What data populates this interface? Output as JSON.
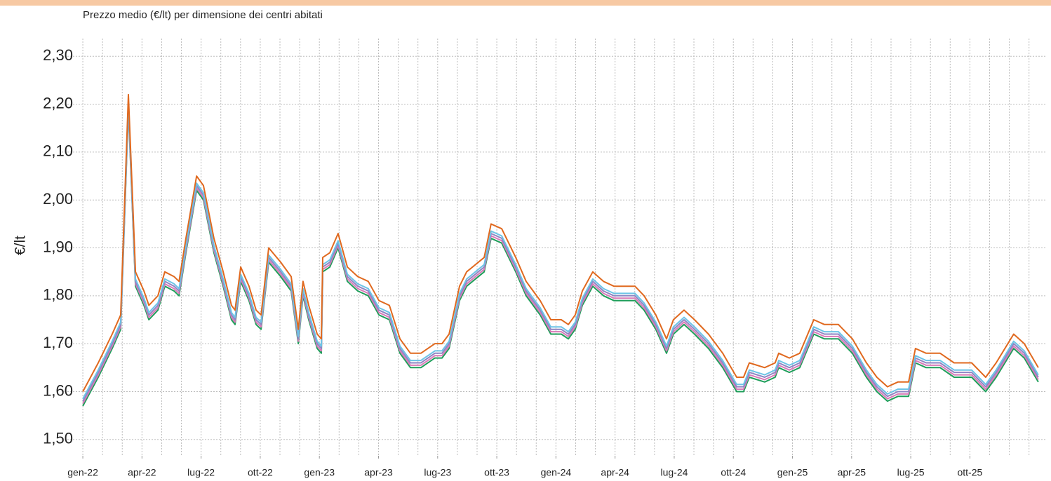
{
  "chart_data": {
    "type": "line",
    "title": "Prezzo medio (€/lt) per dimensione dei centri abitati",
    "ylabel": "€/lt",
    "grid": true,
    "xlim": [
      -1.07,
      48.83
    ],
    "ylim": [
      1.466,
      2.337
    ],
    "yticks": [
      {
        "value": 1.5,
        "label": "1,50"
      },
      {
        "value": 1.6,
        "label": "1,60"
      },
      {
        "value": 1.7,
        "label": "1,70"
      },
      {
        "value": 1.8,
        "label": "1,80"
      },
      {
        "value": 1.9,
        "label": "1,90"
      },
      {
        "value": 2.0,
        "label": "2,00"
      },
      {
        "value": 2.1,
        "label": "2,10"
      },
      {
        "value": 2.2,
        "label": "2,20"
      },
      {
        "value": 2.3,
        "label": "2,30"
      }
    ],
    "xticks": [
      {
        "value": 0,
        "label": "gen-22"
      },
      {
        "value": 3,
        "label": "apr-22"
      },
      {
        "value": 6,
        "label": "lug-22"
      },
      {
        "value": 9,
        "label": "ott-22"
      },
      {
        "value": 12,
        "label": "gen-23"
      },
      {
        "value": 15,
        "label": "apr-23"
      },
      {
        "value": 18,
        "label": "lug-23"
      },
      {
        "value": 21,
        "label": "ott-23"
      },
      {
        "value": 24,
        "label": "gen-24"
      },
      {
        "value": 27,
        "label": "apr-24"
      },
      {
        "value": 30,
        "label": "lug-24"
      },
      {
        "value": 33,
        "label": "ott-24"
      },
      {
        "value": 36,
        "label": "gen-25"
      },
      {
        "value": 39,
        "label": "apr-25"
      },
      {
        "value": 42,
        "label": "lug-25"
      },
      {
        "value": 45,
        "label": "ott-25"
      }
    ],
    "xminorticks": [
      0,
      1,
      2,
      3,
      4,
      5,
      6,
      7,
      8,
      9,
      10,
      11,
      12,
      13,
      14,
      15,
      16,
      17,
      18,
      19,
      20,
      21,
      22,
      23,
      24,
      25,
      26,
      27,
      28,
      29,
      30,
      31,
      32,
      33,
      34,
      35,
      36,
      37,
      38,
      39,
      40,
      41,
      42,
      43,
      44,
      45,
      46,
      47,
      48
    ],
    "x": [
      0,
      0.78,
      1.49,
      1.92,
      2.31,
      2.67,
      3.1,
      3.35,
      3.81,
      4.16,
      4.63,
      4.88,
      5.23,
      5.77,
      6.12,
      6.65,
      7.12,
      7.54,
      7.72,
      8.01,
      8.43,
      8.79,
      9.04,
      9.43,
      10.04,
      10.57,
      10.93,
      11.17,
      11.46,
      11.89,
      12.1,
      12.17,
      12.53,
      12.95,
      13.42,
      13.95,
      14.48,
      15.02,
      15.55,
      16.09,
      16.62,
      17.15,
      17.86,
      18.22,
      18.58,
      19.11,
      19.47,
      20.36,
      20.71,
      21.25,
      21.96,
      22.49,
      23.2,
      23.74,
      24.27,
      24.63,
      24.98,
      25.34,
      25.87,
      26.41,
      26.94,
      27.47,
      28.01,
      28.47,
      29.07,
      29.61,
      29.96,
      30.5,
      31.03,
      31.74,
      32.46,
      33.17,
      33.52,
      33.81,
      34.59,
      35.12,
      35.3,
      35.84,
      36.37,
      37.08,
      37.62,
      38.33,
      39.04,
      39.75,
      40.28,
      40.82,
      41.35,
      41.89,
      42.24,
      42.78,
      43.49,
      44.2,
      45.09,
      45.8,
      46.33,
      47.22,
      47.76,
      48.47
    ],
    "series": [
      {
        "color": "#1e9e5a",
        "values": [
          1.57,
          1.63,
          1.69,
          1.73,
          2.19,
          1.82,
          1.78,
          1.75,
          1.77,
          1.82,
          1.81,
          1.8,
          1.89,
          2.02,
          2.0,
          1.89,
          1.82,
          1.75,
          1.74,
          1.83,
          1.79,
          1.74,
          1.73,
          1.87,
          1.84,
          1.81,
          1.7,
          1.8,
          1.75,
          1.69,
          1.68,
          1.85,
          1.86,
          1.9,
          1.83,
          1.81,
          1.8,
          1.76,
          1.75,
          1.68,
          1.65,
          1.65,
          1.67,
          1.67,
          1.69,
          1.79,
          1.82,
          1.85,
          1.92,
          1.91,
          1.85,
          1.8,
          1.76,
          1.72,
          1.72,
          1.71,
          1.73,
          1.78,
          1.82,
          1.8,
          1.79,
          1.79,
          1.79,
          1.77,
          1.73,
          1.68,
          1.72,
          1.74,
          1.72,
          1.69,
          1.65,
          1.6,
          1.6,
          1.63,
          1.62,
          1.63,
          1.65,
          1.64,
          1.65,
          1.72,
          1.71,
          1.71,
          1.68,
          1.63,
          1.6,
          1.58,
          1.59,
          1.59,
          1.66,
          1.65,
          1.65,
          1.63,
          1.63,
          1.6,
          1.63,
          1.69,
          1.67,
          1.62
        ]
      },
      {
        "color": "#d97ab8",
        "values": [
          1.575,
          1.635,
          1.695,
          1.735,
          2.195,
          1.825,
          1.785,
          1.755,
          1.775,
          1.825,
          1.815,
          1.805,
          1.895,
          2.025,
          2.005,
          1.895,
          1.825,
          1.755,
          1.745,
          1.835,
          1.795,
          1.745,
          1.735,
          1.875,
          1.845,
          1.815,
          1.705,
          1.805,
          1.755,
          1.695,
          1.685,
          1.855,
          1.865,
          1.905,
          1.835,
          1.815,
          1.805,
          1.765,
          1.755,
          1.685,
          1.655,
          1.655,
          1.675,
          1.675,
          1.695,
          1.795,
          1.825,
          1.855,
          1.925,
          1.915,
          1.855,
          1.805,
          1.765,
          1.725,
          1.725,
          1.715,
          1.735,
          1.785,
          1.825,
          1.805,
          1.795,
          1.795,
          1.795,
          1.775,
          1.735,
          1.685,
          1.725,
          1.745,
          1.725,
          1.695,
          1.655,
          1.605,
          1.605,
          1.635,
          1.625,
          1.635,
          1.655,
          1.645,
          1.655,
          1.725,
          1.715,
          1.715,
          1.685,
          1.635,
          1.605,
          1.585,
          1.595,
          1.595,
          1.665,
          1.655,
          1.655,
          1.635,
          1.635,
          1.605,
          1.635,
          1.695,
          1.675,
          1.625
        ]
      },
      {
        "color": "#8e86c4",
        "values": [
          1.58,
          1.64,
          1.7,
          1.74,
          2.2,
          1.83,
          1.79,
          1.76,
          1.78,
          1.83,
          1.82,
          1.81,
          1.9,
          2.03,
          2.01,
          1.9,
          1.83,
          1.76,
          1.75,
          1.84,
          1.8,
          1.75,
          1.74,
          1.88,
          1.85,
          1.82,
          1.71,
          1.81,
          1.76,
          1.7,
          1.69,
          1.86,
          1.87,
          1.91,
          1.84,
          1.82,
          1.81,
          1.77,
          1.76,
          1.69,
          1.66,
          1.66,
          1.68,
          1.68,
          1.7,
          1.8,
          1.83,
          1.86,
          1.93,
          1.92,
          1.86,
          1.81,
          1.77,
          1.73,
          1.73,
          1.72,
          1.74,
          1.79,
          1.83,
          1.81,
          1.8,
          1.8,
          1.8,
          1.78,
          1.74,
          1.69,
          1.73,
          1.75,
          1.73,
          1.7,
          1.66,
          1.61,
          1.61,
          1.64,
          1.63,
          1.64,
          1.66,
          1.65,
          1.66,
          1.73,
          1.72,
          1.72,
          1.69,
          1.64,
          1.61,
          1.59,
          1.6,
          1.6,
          1.67,
          1.66,
          1.66,
          1.64,
          1.64,
          1.61,
          1.64,
          1.7,
          1.68,
          1.63
        ]
      },
      {
        "color": "#6cc3e6",
        "values": [
          1.585,
          1.645,
          1.705,
          1.745,
          2.205,
          1.835,
          1.795,
          1.765,
          1.785,
          1.835,
          1.825,
          1.815,
          1.905,
          2.035,
          2.015,
          1.905,
          1.835,
          1.765,
          1.755,
          1.845,
          1.805,
          1.755,
          1.745,
          1.885,
          1.855,
          1.825,
          1.715,
          1.815,
          1.765,
          1.705,
          1.695,
          1.865,
          1.875,
          1.915,
          1.845,
          1.825,
          1.815,
          1.775,
          1.765,
          1.695,
          1.665,
          1.665,
          1.685,
          1.685,
          1.705,
          1.805,
          1.835,
          1.865,
          1.935,
          1.925,
          1.865,
          1.815,
          1.775,
          1.735,
          1.735,
          1.725,
          1.745,
          1.795,
          1.835,
          1.815,
          1.805,
          1.805,
          1.805,
          1.785,
          1.745,
          1.695,
          1.735,
          1.755,
          1.735,
          1.705,
          1.665,
          1.615,
          1.615,
          1.645,
          1.635,
          1.645,
          1.665,
          1.655,
          1.665,
          1.735,
          1.725,
          1.725,
          1.695,
          1.645,
          1.615,
          1.595,
          1.605,
          1.605,
          1.675,
          1.665,
          1.665,
          1.645,
          1.645,
          1.615,
          1.645,
          1.705,
          1.685,
          1.635
        ]
      },
      {
        "color": "#e0691f",
        "values": [
          1.6,
          1.66,
          1.72,
          1.76,
          2.22,
          1.85,
          1.81,
          1.78,
          1.8,
          1.85,
          1.84,
          1.83,
          1.92,
          2.05,
          2.03,
          1.92,
          1.85,
          1.78,
          1.77,
          1.86,
          1.82,
          1.77,
          1.76,
          1.9,
          1.87,
          1.84,
          1.73,
          1.83,
          1.78,
          1.72,
          1.71,
          1.88,
          1.89,
          1.93,
          1.86,
          1.84,
          1.83,
          1.79,
          1.78,
          1.71,
          1.68,
          1.68,
          1.7,
          1.7,
          1.72,
          1.82,
          1.85,
          1.88,
          1.95,
          1.94,
          1.88,
          1.83,
          1.79,
          1.75,
          1.75,
          1.74,
          1.76,
          1.81,
          1.85,
          1.83,
          1.82,
          1.82,
          1.82,
          1.8,
          1.76,
          1.71,
          1.75,
          1.77,
          1.75,
          1.72,
          1.68,
          1.63,
          1.63,
          1.66,
          1.65,
          1.66,
          1.68,
          1.67,
          1.68,
          1.75,
          1.74,
          1.74,
          1.71,
          1.66,
          1.63,
          1.61,
          1.62,
          1.62,
          1.69,
          1.68,
          1.68,
          1.66,
          1.66,
          1.63,
          1.66,
          1.72,
          1.7,
          1.65
        ]
      }
    ]
  }
}
